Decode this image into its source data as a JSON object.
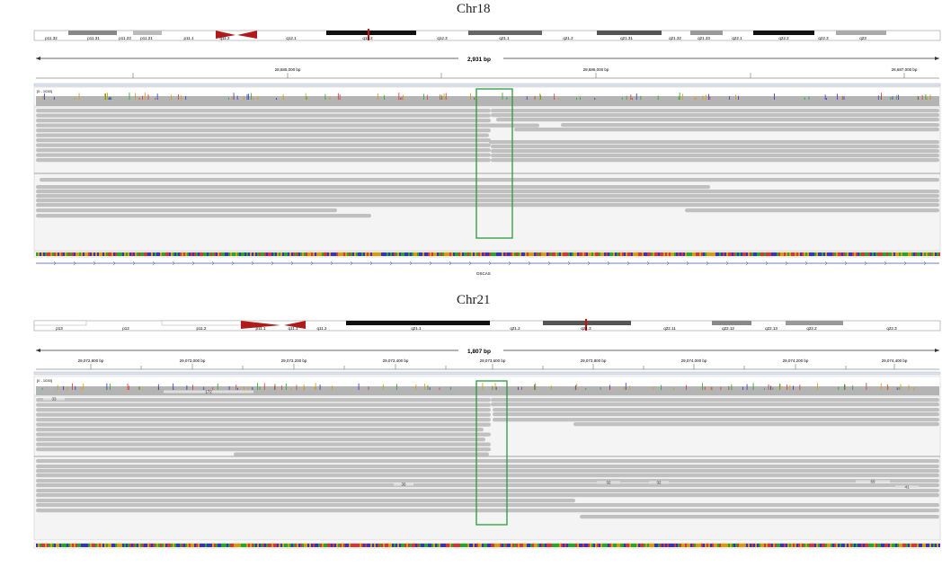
{
  "panels": [
    {
      "title": "Chr18",
      "ideogram_bands": [
        "p11.32",
        "p11.31",
        "p11.23",
        "p11.21",
        "p11.1",
        "q11.2",
        "q12.1",
        "q12.2",
        "q12.3",
        "q21.1",
        "q21.2",
        "q21.31",
        "q21.32",
        "q21.33",
        "q22.1",
        "q22.2",
        "q22.3",
        "q23"
      ],
      "span_label": "2,931 bp",
      "ruler_ticks": [
        "28,685,000 bp",
        "28,686,000 bp",
        "28,687,000 bp"
      ],
      "coverage_range": "[0 - 1030]",
      "gene_label": "DSCAS",
      "insert_labels": []
    },
    {
      "title": "Chr21",
      "ideogram_bands": [
        "p13",
        "p12",
        "p11.2",
        "p11.1",
        "q11.1",
        "q11.2",
        "q21.1",
        "q21.2",
        "q21.3",
        "q22.11",
        "q22.12",
        "q22.13",
        "q22.2",
        "q22.3"
      ],
      "span_label": "1,807 bp",
      "ruler_ticks": [
        "29,072,800 bp",
        "29,073,000 bp",
        "29,073,200 bp",
        "29,073,400 bp",
        "29,073,600 bp",
        "29,073,800 bp",
        "29,074,000 bp",
        "29,074,200 bp",
        "29,074,400 bp"
      ],
      "coverage_range": "[0 - 1030]",
      "gene_label": "",
      "insert_labels": [
        "33",
        "172",
        "36",
        "32",
        "32",
        "69",
        "41"
      ]
    }
  ],
  "colors": {
    "read": "#c0c0c0",
    "coverage": "#b4b4b4",
    "highlight": "#2a9a3a",
    "centromere": "#b01a1a",
    "marker": "#d01010"
  }
}
